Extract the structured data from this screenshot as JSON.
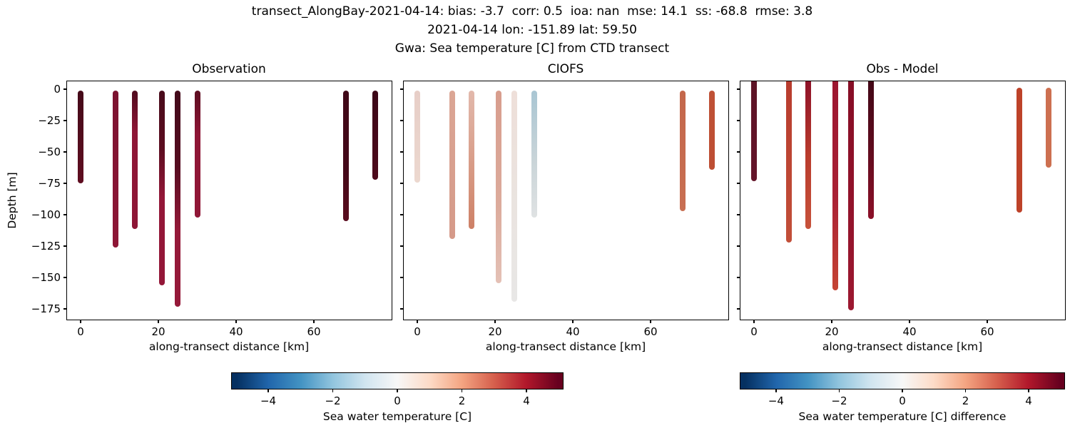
{
  "figure_title": {
    "line1": "transect_AlongBay-2021-04-14: bias: -3.7  corr: 0.5  ioa: nan  mse: 14.1  ss: -68.8  rmse: 3.8",
    "line2": "2021-04-14 lon: -151.89 lat: 59.50",
    "line3": "Gwa: Sea temperature [C] from CTD transect"
  },
  "chart_data": {
    "type": "scatter",
    "subtype": "ctd-transect-depth-profiles",
    "xlabel": "along-transect distance [km]",
    "ylabel": "Depth [m]",
    "xlim": [
      -3.8,
      80.1
    ],
    "ylim": [
      -183.5,
      8.5
    ],
    "grid": false,
    "xticks": {
      "values": [
        0,
        20,
        40,
        60
      ],
      "labels": [
        "0",
        "20",
        "40",
        "60"
      ]
    },
    "yticks": {
      "values": [
        0,
        -25,
        -50,
        -75,
        -100,
        -125,
        -150,
        -175
      ],
      "labels": [
        "0",
        "−25",
        "−50",
        "−75",
        "−100",
        "−125",
        "−150",
        "−175"
      ]
    },
    "stations_km": [
      0,
      9,
      14,
      21,
      25,
      30,
      68.3,
      75.7
    ],
    "colormap": {
      "name": "RdBu_r",
      "values": [
        -5,
        -4,
        -3,
        -2,
        -1,
        0,
        1,
        2,
        3,
        4,
        5
      ],
      "colors": [
        "#053061",
        "#2166ac",
        "#4393c3",
        "#92c5de",
        "#d1e5f0",
        "#f7f7f7",
        "#fddbc7",
        "#f4a582",
        "#d6604d",
        "#b2182b",
        "#67001f"
      ]
    },
    "panels": [
      {
        "title": "Observation",
        "show_ytick_labels": true,
        "profiles": [
          {
            "km": 0,
            "depth_top": -3.5,
            "depth_bottom": -73,
            "temp_c": [
              5.0,
              4.9
            ],
            "stops": [
              [
                "#450a19",
                0
              ],
              [
                "#5f0d20",
                100
              ]
            ]
          },
          {
            "km": 9,
            "depth_top": -3.5,
            "depth_bottom": -124,
            "temp_c": [
              4.5,
              4.45
            ],
            "stops": [
              [
                "#7c1230",
                0
              ],
              [
                "#8e1636",
                100
              ]
            ]
          },
          {
            "km": 14,
            "depth_top": -3.5,
            "depth_bottom": -109,
            "temp_c": [
              4.85,
              4.45
            ],
            "stops": [
              [
                "#500b1e",
                0
              ],
              [
                "#8e1636",
                30
              ],
              [
                "#8e1636",
                100
              ]
            ]
          },
          {
            "km": 21,
            "depth_top": -3.5,
            "depth_bottom": -154,
            "temp_c": [
              4.95,
              4.4
            ],
            "stops": [
              [
                "#480b1b",
                0
              ],
              [
                "#5c0d20",
                30
              ],
              [
                "#931738",
                55
              ],
              [
                "#931738",
                100
              ]
            ]
          },
          {
            "km": 25,
            "depth_top": -3.5,
            "depth_bottom": -171,
            "temp_c": [
              5.0,
              4.35
            ],
            "stops": [
              [
                "#430a1a",
                0
              ],
              [
                "#560c20",
                35
              ],
              [
                "#951939",
                65
              ],
              [
                "#951939",
                100
              ]
            ]
          },
          {
            "km": 30,
            "depth_top": -3.5,
            "depth_bottom": -100,
            "temp_c": [
              4.7,
              4.45
            ],
            "stops": [
              [
                "#5c0d20",
                0
              ],
              [
                "#8e1535",
                35
              ],
              [
                "#901737",
                100
              ]
            ]
          },
          {
            "km": 68.3,
            "depth_top": -3.5,
            "depth_bottom": -103,
            "temp_c": [
              5.0,
              4.9
            ],
            "stops": [
              [
                "#400818",
                0
              ],
              [
                "#440919",
                60
              ],
              [
                "#5a0c1e",
                100
              ]
            ]
          },
          {
            "km": 75.7,
            "depth_top": -3.5,
            "depth_bottom": -70,
            "temp_c": [
              5.05,
              5.0
            ],
            "stops": [
              [
                "#3c0717",
                0
              ],
              [
                "#4e0a1c",
                100
              ]
            ]
          }
        ]
      },
      {
        "title": "CIOFS",
        "show_ytick_labels": false,
        "profiles": [
          {
            "km": 0,
            "depth_top": -3.5,
            "depth_bottom": -72,
            "temp_c": [
              0.9,
              0.75
            ],
            "stops": [
              [
                "#e7cec7",
                0
              ],
              [
                "#ecd8cf",
                100
              ]
            ]
          },
          {
            "km": 9,
            "depth_top": -3.5,
            "depth_bottom": -117,
            "temp_c": [
              1.5,
              1.6
            ],
            "stops": [
              [
                "#dba695",
                0
              ],
              [
                "#d59a89",
                100
              ]
            ]
          },
          {
            "km": 14,
            "depth_top": -3.5,
            "depth_bottom": -109,
            "temp_c": [
              1.15,
              2.3
            ],
            "stops": [
              [
                "#e2b9ac",
                0
              ],
              [
                "#d5937c",
                70
              ],
              [
                "#cd8066",
                100
              ]
            ]
          },
          {
            "km": 21,
            "depth_top": -3.5,
            "depth_bottom": -152,
            "temp_c": [
              1.6,
              1.0
            ],
            "stops": [
              [
                "#d89d8d",
                0
              ],
              [
                "#dcab9c",
                60
              ],
              [
                "#e4c1b6",
                100
              ]
            ]
          },
          {
            "km": 25,
            "depth_top": -3.5,
            "depth_bottom": -167,
            "temp_c": [
              0.45,
              0.05
            ],
            "stops": [
              [
                "#eedfd9",
                0
              ],
              [
                "#eae4e0",
                55
              ],
              [
                "#e8e7e6",
                100
              ]
            ]
          },
          {
            "km": 30,
            "depth_top": -3.5,
            "depth_bottom": -100,
            "temp_c": [
              -1.6,
              -0.2
            ],
            "stops": [
              [
                "#a9c6d3",
                0
              ],
              [
                "#c9d4d8",
                55
              ],
              [
                "#dfe2e3",
                100
              ]
            ]
          },
          {
            "km": 68.3,
            "depth_top": -3.5,
            "depth_bottom": -95,
            "temp_c": [
              2.5,
              2.35
            ],
            "stops": [
              [
                "#c4674b",
                0
              ],
              [
                "#c86f52",
                100
              ]
            ]
          },
          {
            "km": 75.7,
            "depth_top": -3.5,
            "depth_bottom": -62,
            "temp_c": [
              2.95,
              3.0
            ],
            "stops": [
              [
                "#bf5136",
                0
              ],
              [
                "#bd4e33",
                100
              ]
            ]
          }
        ]
      },
      {
        "title": "Obs - Model",
        "show_ytick_labels": false,
        "profiles": [
          {
            "km": 0,
            "depth_top": 0,
            "flush_top": true,
            "depth_bottom": -71,
            "temp_c": [
              4.1,
              4.15
            ],
            "stops": [
              [
                "#5d1426",
                0
              ],
              [
                "#64152a",
                100
              ]
            ]
          },
          {
            "km": 9,
            "depth_top": 0,
            "flush_top": true,
            "depth_bottom": -120,
            "temp_c": [
              2.9,
              2.8
            ],
            "stops": [
              [
                "#b83c2e",
                0
              ],
              [
                "#c24f39",
                100
              ]
            ]
          },
          {
            "km": 14,
            "depth_top": 0,
            "flush_top": true,
            "depth_bottom": -109,
            "temp_c": [
              3.7,
              2.15
            ],
            "stops": [
              [
                "#8e1128",
                0
              ],
              [
                "#b93b2c",
                50
              ],
              [
                "#c7523b",
                100
              ]
            ]
          },
          {
            "km": 21,
            "depth_top": 0,
            "flush_top": true,
            "depth_bottom": -158,
            "temp_c": [
              3.35,
              3.4
            ],
            "stops": [
              [
                "#9c1630",
                0
              ],
              [
                "#a92135",
                55
              ],
              [
                "#c54434",
                100
              ]
            ]
          },
          {
            "km": 25,
            "depth_top": 0,
            "flush_top": true,
            "depth_bottom": -174,
            "temp_c": [
              4.55,
              4.3
            ],
            "stops": [
              [
                "#860d25",
                0
              ],
              [
                "#9c1830",
                100
              ]
            ]
          },
          {
            "km": 30,
            "depth_top": 0,
            "flush_top": true,
            "depth_bottom": -101,
            "temp_c": [
              6.3,
              4.65
            ],
            "stops": [
              [
                "#420716",
                0
              ],
              [
                "#5c0b1d",
                45
              ],
              [
                "#8c1028",
                100
              ]
            ]
          },
          {
            "km": 68.3,
            "depth_top": -1,
            "depth_bottom": -96,
            "temp_c": [
              2.5,
              2.55
            ],
            "stops": [
              [
                "#bd4229",
                0
              ],
              [
                "#bd4229",
                100
              ]
            ]
          },
          {
            "km": 75.7,
            "depth_top": -1,
            "depth_bottom": -60,
            "temp_c": [
              2.1,
              2.05
            ],
            "stops": [
              [
                "#cd7050",
                0
              ],
              [
                "#cd7050",
                100
              ]
            ]
          }
        ]
      }
    ],
    "colorbars": [
      {
        "label": "Sea water temperature [C]",
        "range": [
          -5.15,
          5.15
        ],
        "ticks": {
          "values": [
            -4,
            -2,
            0,
            2,
            4
          ],
          "labels": [
            "−4",
            "−2",
            "0",
            "2",
            "4"
          ]
        }
      },
      {
        "label": "Sea water temperature [C] difference",
        "range": [
          -5.15,
          5.15
        ],
        "ticks": {
          "values": [
            -4,
            -2,
            0,
            2,
            4
          ],
          "labels": [
            "−4",
            "−2",
            "0",
            "2",
            "4"
          ]
        }
      }
    ]
  }
}
